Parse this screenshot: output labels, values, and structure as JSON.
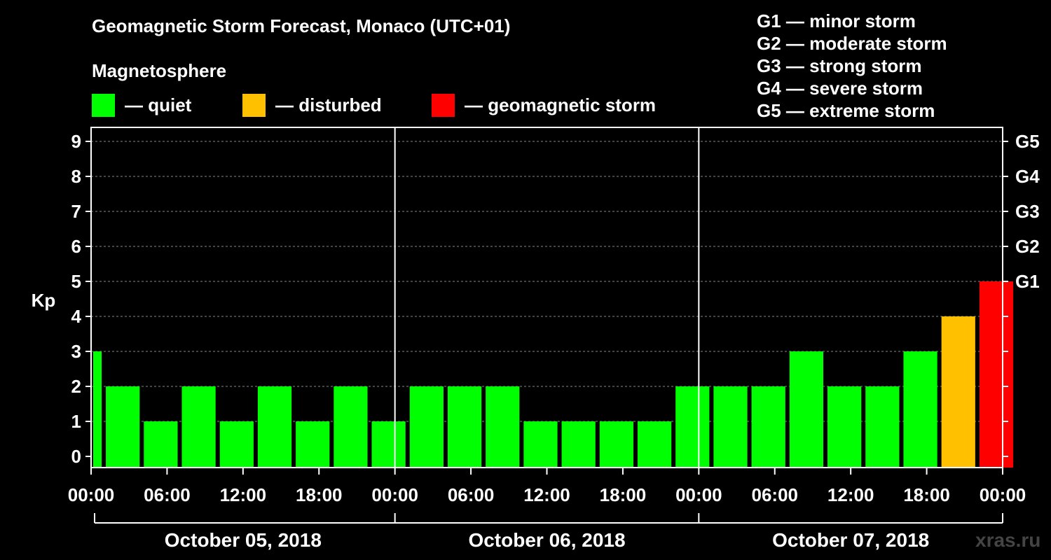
{
  "chart_data": {
    "type": "bar",
    "title": "Geomagnetic Storm Forecast, Monaco (UTC+01)",
    "subtitle": "Magnetosphere",
    "ylabel": "Kp",
    "ylim": [
      0,
      9
    ],
    "y_ticks": [
      "0",
      "1",
      "2",
      "3",
      "4",
      "5",
      "6",
      "7",
      "8",
      "9"
    ],
    "right_ticks": [
      {
        "kp": 5,
        "label": "G1"
      },
      {
        "kp": 6,
        "label": "G2"
      },
      {
        "kp": 7,
        "label": "G3"
      },
      {
        "kp": 8,
        "label": "G4"
      },
      {
        "kp": 9,
        "label": "G5"
      }
    ],
    "x_ticks": [
      "00:00",
      "06:00",
      "12:00",
      "18:00",
      "00:00",
      "06:00",
      "12:00",
      "18:00",
      "00:00",
      "06:00",
      "12:00",
      "18:00",
      "00:00"
    ],
    "days": [
      "October 05, 2018",
      "October 06, 2018",
      "October 07, 2018"
    ],
    "hours_per_bar": 3,
    "first_bar_hours": 1,
    "values": [
      3,
      2,
      1,
      2,
      1,
      2,
      1,
      2,
      1,
      2,
      2,
      2,
      1,
      1,
      1,
      1,
      2,
      2,
      2,
      3,
      2,
      2,
      3,
      4,
      5
    ],
    "status": [
      "quiet",
      "quiet",
      "quiet",
      "quiet",
      "quiet",
      "quiet",
      "quiet",
      "quiet",
      "quiet",
      "quiet",
      "quiet",
      "quiet",
      "quiet",
      "quiet",
      "quiet",
      "quiet",
      "quiet",
      "quiet",
      "quiet",
      "quiet",
      "quiet",
      "quiet",
      "quiet",
      "disturbed",
      "storm"
    ],
    "colors": {
      "quiet": "#00ff00",
      "disturbed": "#ffc000",
      "storm": "#ff0000"
    },
    "legend": [
      {
        "key": "quiet",
        "label": "— quiet"
      },
      {
        "key": "disturbed",
        "label": "— disturbed"
      },
      {
        "key": "storm",
        "label": "— geomagnetic storm"
      }
    ],
    "g_scale": [
      "G1 — minor storm",
      "G2 — moderate storm",
      "G3 — strong storm",
      "G4 — severe storm",
      "G5 — extreme storm"
    ],
    "grid": true
  },
  "watermark": "xras.ru"
}
